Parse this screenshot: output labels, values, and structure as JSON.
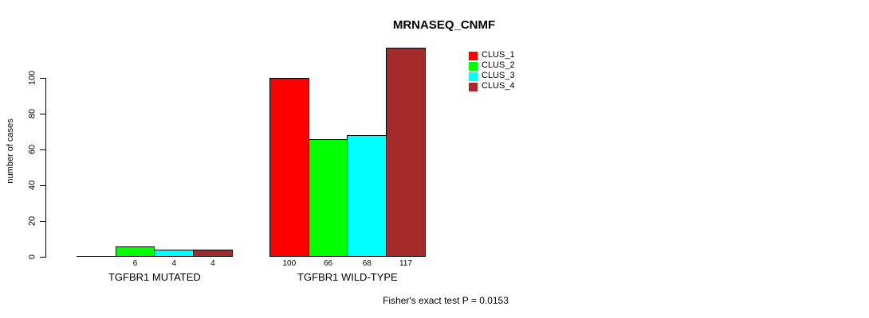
{
  "chart_data": {
    "type": "bar",
    "title": "MRNASEQ_CNMF",
    "ylabel": "number of cases",
    "xlabel": "",
    "categories": [
      "TGFBR1 MUTATED",
      "TGFBR1 WILD-TYPE"
    ],
    "series": [
      {
        "name": "CLUS_1",
        "color": "#FF0000",
        "values": [
          0,
          100
        ]
      },
      {
        "name": "CLUS_2",
        "color": "#00FF00",
        "values": [
          6,
          66
        ]
      },
      {
        "name": "CLUS_3",
        "color": "#00FFFF",
        "values": [
          4,
          68
        ]
      },
      {
        "name": "CLUS_4",
        "color": "#A52A2A",
        "values": [
          4,
          117
        ]
      }
    ],
    "bar_value_labels": [
      [
        "",
        "6",
        "4",
        "4"
      ],
      [
        "100",
        "66",
        "68",
        "117"
      ]
    ],
    "yticks": [
      0,
      20,
      40,
      60,
      80,
      100
    ],
    "ylim": [
      0,
      118
    ],
    "grid": false,
    "legend": {
      "position": "top-right",
      "entries": [
        "CLUS_1",
        "CLUS_2",
        "CLUS_3",
        "CLUS_4"
      ]
    },
    "annotation": "Fisher's exact test P = 0.0153"
  }
}
